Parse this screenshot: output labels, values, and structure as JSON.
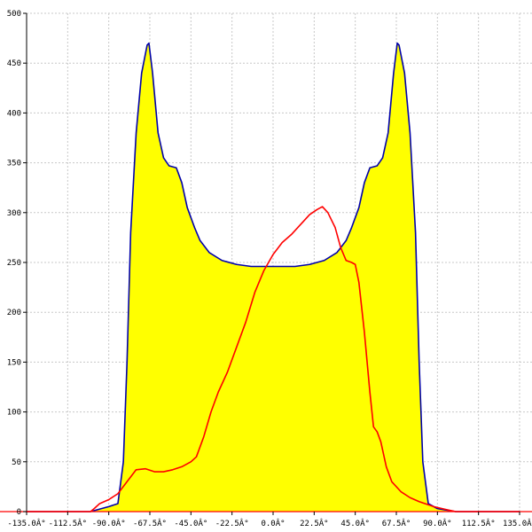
{
  "chart_data": {
    "type": "area",
    "xlim": [
      -135,
      135
    ],
    "ylim": [
      0,
      500
    ],
    "grid": true,
    "x_ticks": [
      -135,
      -112.5,
      -90,
      -67.5,
      -45,
      -22.5,
      0,
      22.5,
      45,
      67.5,
      90,
      112.5,
      135
    ],
    "x_tick_labels": [
      "-135.0Â°",
      "-112.5Â°",
      "-90.0Â°",
      "-67.5Â°",
      "-45.0Â°",
      "-22.5Â°",
      "0.0Â°",
      "22.5Â°",
      "45.0Â°",
      "67.5Â°",
      "90.0Â°",
      "112.5Â°",
      "135.0Â°"
    ],
    "y_ticks": [
      0,
      50,
      100,
      150,
      200,
      250,
      300,
      350,
      400,
      450,
      500
    ],
    "y_tick_labels": [
      "0",
      "50",
      "100",
      "150",
      "200",
      "250",
      "300",
      "350",
      "400",
      "450",
      "500"
    ],
    "series": [
      {
        "color": "#0000aa",
        "fill": "#ffff00",
        "points": [
          [
            -135,
            0
          ],
          [
            -100,
            0
          ],
          [
            -90,
            5
          ],
          [
            -85,
            8
          ],
          [
            -82,
            50
          ],
          [
            -80,
            150
          ],
          [
            -78,
            280
          ],
          [
            -75,
            380
          ],
          [
            -72,
            440
          ],
          [
            -69,
            468
          ],
          [
            -68,
            470
          ],
          [
            -66,
            440
          ],
          [
            -63,
            380
          ],
          [
            -60,
            355
          ],
          [
            -57,
            347
          ],
          [
            -53,
            345
          ],
          [
            -50,
            330
          ],
          [
            -47,
            305
          ],
          [
            -43,
            285
          ],
          [
            -40,
            272
          ],
          [
            -35,
            260
          ],
          [
            -28,
            252
          ],
          [
            -20,
            248
          ],
          [
            -12,
            246
          ],
          [
            0,
            246
          ],
          [
            12,
            246
          ],
          [
            20,
            248
          ],
          [
            28,
            252
          ],
          [
            35,
            260
          ],
          [
            40,
            272
          ],
          [
            43,
            285
          ],
          [
            47,
            305
          ],
          [
            50,
            330
          ],
          [
            53,
            345
          ],
          [
            57,
            347
          ],
          [
            60,
            355
          ],
          [
            63,
            380
          ],
          [
            66,
            440
          ],
          [
            68,
            470
          ],
          [
            69,
            468
          ],
          [
            72,
            440
          ],
          [
            75,
            380
          ],
          [
            78,
            280
          ],
          [
            80,
            150
          ],
          [
            82,
            50
          ],
          [
            85,
            8
          ],
          [
            90,
            3
          ],
          [
            100,
            0
          ],
          [
            135,
            0
          ]
        ]
      },
      {
        "color": "#ff0000",
        "fill": "none",
        "points": [
          [
            -135,
            0
          ],
          [
            -100,
            0
          ],
          [
            -98,
            3
          ],
          [
            -95,
            8
          ],
          [
            -90,
            12
          ],
          [
            -85,
            18
          ],
          [
            -80,
            30
          ],
          [
            -75,
            42
          ],
          [
            -70,
            43
          ],
          [
            -65,
            40
          ],
          [
            -60,
            40
          ],
          [
            -55,
            42
          ],
          [
            -50,
            45
          ],
          [
            -45,
            50
          ],
          [
            -42,
            55
          ],
          [
            -38,
            75
          ],
          [
            -34,
            100
          ],
          [
            -30,
            120
          ],
          [
            -25,
            140
          ],
          [
            -20,
            165
          ],
          [
            -15,
            190
          ],
          [
            -10,
            220
          ],
          [
            -5,
            242
          ],
          [
            0,
            258
          ],
          [
            5,
            270
          ],
          [
            10,
            278
          ],
          [
            15,
            288
          ],
          [
            20,
            298
          ],
          [
            24,
            303
          ],
          [
            27,
            306
          ],
          [
            30,
            300
          ],
          [
            34,
            285
          ],
          [
            37,
            265
          ],
          [
            40,
            252
          ],
          [
            43,
            250
          ],
          [
            45,
            248
          ],
          [
            47,
            230
          ],
          [
            50,
            180
          ],
          [
            53,
            120
          ],
          [
            55,
            85
          ],
          [
            57,
            80
          ],
          [
            59,
            70
          ],
          [
            62,
            45
          ],
          [
            65,
            30
          ],
          [
            70,
            20
          ],
          [
            75,
            14
          ],
          [
            80,
            10
          ],
          [
            88,
            5
          ],
          [
            95,
            2
          ],
          [
            100,
            0
          ],
          [
            135,
            0
          ]
        ]
      }
    ]
  }
}
